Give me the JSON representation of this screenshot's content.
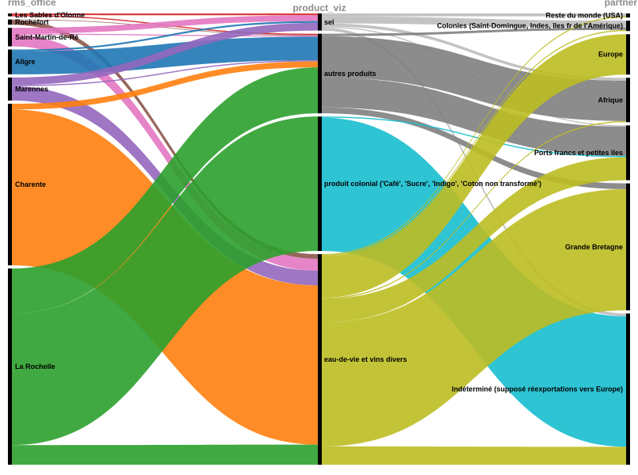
{
  "chart_data": {
    "type": "sankey",
    "axes": {
      "left": "rms_office",
      "middle": "product_viz",
      "right": "partner"
    },
    "nodes": {
      "left": [
        {
          "id": "sables",
          "name": "Les Sables d'Olonne",
          "color": "#d62728"
        },
        {
          "id": "rochefort",
          "name": "Rochefort",
          "color": "#8c564b"
        },
        {
          "id": "stmartin",
          "name": "Saint-Martin-de-Ré",
          "color": "#e377c2"
        },
        {
          "id": "aligre",
          "name": "Aligre",
          "color": "#1f77b4"
        },
        {
          "id": "marennes",
          "name": "Marennes",
          "color": "#9467bd"
        },
        {
          "id": "charente",
          "name": "Charente",
          "color": "#ff7f0e"
        },
        {
          "id": "larochelle",
          "name": "La Rochelle",
          "color": "#2ca02c"
        }
      ],
      "middle": [
        {
          "id": "sel",
          "name": "sel"
        },
        {
          "id": "autres",
          "name": "autres produits"
        },
        {
          "id": "colonial",
          "name": "produit colonial ('Café', 'Sucre', 'Indigo', 'Coton non transformé')"
        },
        {
          "id": "eau",
          "name": "eau-de-vie et vins divers"
        }
      ],
      "right": [
        {
          "id": "usa",
          "name": "Reste du monde (USA)"
        },
        {
          "id": "colonies",
          "name": "Colonies (Saint-Domingue, Indes, îles fr de l'Amérique)"
        },
        {
          "id": "europe",
          "name": "Europe"
        },
        {
          "id": "afrique",
          "name": "Afrique"
        },
        {
          "id": "ports",
          "name": "Ports francs et petites îles"
        },
        {
          "id": "gb",
          "name": "Grande Bretagne"
        },
        {
          "id": "indet",
          "name": "Indéterminé (supposé réexportations vers Europe)"
        }
      ]
    },
    "links_office_product": [
      {
        "source": "sables",
        "target": "sel",
        "value": 3,
        "color": "#d62728"
      },
      {
        "source": "sables",
        "target": "autres",
        "value": 2,
        "color": "#d62728"
      },
      {
        "source": "rochefort",
        "target": "autres",
        "value": 1,
        "color": "#8c564b"
      },
      {
        "source": "rochefort",
        "target": "eau",
        "value": 8,
        "color": "#8c564b"
      },
      {
        "source": "stmartin",
        "target": "sel",
        "value": 10,
        "color": "#e377c2"
      },
      {
        "source": "stmartin",
        "target": "autres",
        "value": 2,
        "color": "#e377c2"
      },
      {
        "source": "stmartin",
        "target": "eau",
        "value": 20,
        "color": "#e377c2"
      },
      {
        "source": "aligre",
        "target": "sel",
        "value": 3,
        "color": "#1f77b4"
      },
      {
        "source": "aligre",
        "target": "autres",
        "value": 40,
        "color": "#1f77b4"
      },
      {
        "source": "marennes",
        "target": "sel",
        "value": 13,
        "color": "#9467bd"
      },
      {
        "source": "marennes",
        "target": "autres",
        "value": 2,
        "color": "#9467bd"
      },
      {
        "source": "marennes",
        "target": "eau",
        "value": 25,
        "color": "#9467bd"
      },
      {
        "source": "charente",
        "target": "autres",
        "value": 10,
        "color": "#ff7f0e"
      },
      {
        "source": "charente",
        "target": "eau",
        "value": 270,
        "color": "#ff7f0e"
      },
      {
        "source": "larochelle",
        "target": "autres",
        "value": 78,
        "color": "#2ca02c"
      },
      {
        "source": "larochelle",
        "target": "colonial",
        "value": 228,
        "color": "#2ca02c"
      },
      {
        "source": "larochelle",
        "target": "eau",
        "value": 34,
        "color": "#2ca02c"
      }
    ],
    "links_product_partner": [
      {
        "source": "sel",
        "target": "usa",
        "value": 5,
        "color": "#bdbdbd"
      },
      {
        "source": "sel",
        "target": "colonies",
        "value": 12,
        "color": "#bdbdbd"
      },
      {
        "source": "sel",
        "target": "afrique",
        "value": 5,
        "color": "#bdbdbd"
      },
      {
        "source": "sel",
        "target": "ports",
        "value": 2,
        "color": "#bdbdbd"
      },
      {
        "source": "sel",
        "target": "indet",
        "value": 5,
        "color": "#bdbdbd"
      },
      {
        "source": "autres",
        "target": "colonies",
        "value": 4,
        "color": "#7f7f7f"
      },
      {
        "source": "autres",
        "target": "afrique",
        "value": 70,
        "color": "#7f7f7f"
      },
      {
        "source": "autres",
        "target": "ports",
        "value": 51,
        "color": "#7f7f7f"
      },
      {
        "source": "autres",
        "target": "gb",
        "value": 10,
        "color": "#7f7f7f"
      },
      {
        "source": "colonial",
        "target": "ports",
        "value": 2,
        "color": "#17becf"
      },
      {
        "source": "colonial",
        "target": "indet",
        "value": 226,
        "color": "#17becf"
      },
      {
        "source": "eau",
        "target": "usa",
        "value": 2,
        "color": "#bcbd22"
      },
      {
        "source": "eau",
        "target": "colonies",
        "value": 2,
        "color": "#bcbd22"
      },
      {
        "source": "eau",
        "target": "europe",
        "value": 70,
        "color": "#bcbd22"
      },
      {
        "source": "eau",
        "target": "afrique",
        "value": 2,
        "color": "#bcbd22"
      },
      {
        "source": "eau",
        "target": "ports",
        "value": 40,
        "color": "#bcbd22"
      },
      {
        "source": "eau",
        "target": "gb",
        "value": 210,
        "color": "#bcbd22"
      },
      {
        "source": "eau",
        "target": "indet",
        "value": 31,
        "color": "#bcbd22"
      }
    ]
  }
}
